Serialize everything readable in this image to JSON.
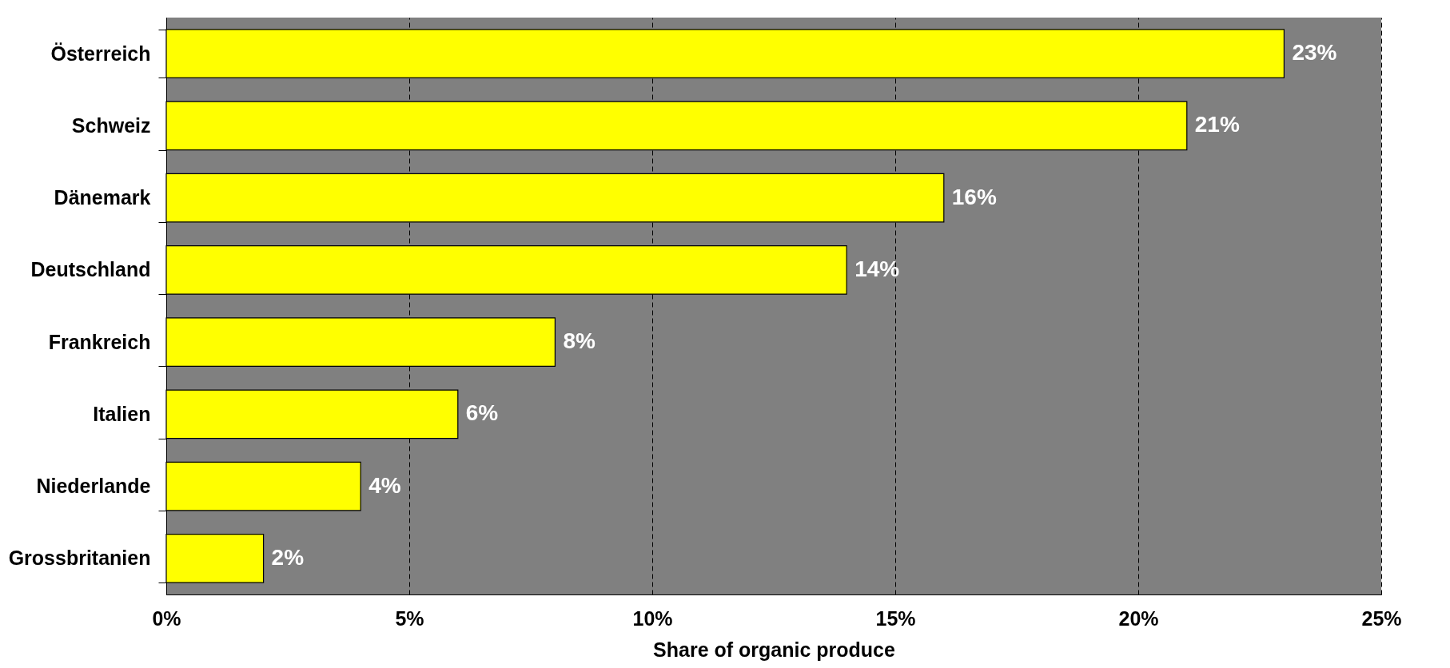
{
  "chart_data": {
    "type": "bar",
    "orientation": "horizontal",
    "xlabel": "Share of organic produce",
    "categories": [
      "Österreich",
      "Schweiz",
      "Dänemark",
      "Deutschland",
      "Frankreich",
      "Italien",
      "Niederlande",
      "Grossbritanien"
    ],
    "values": [
      23,
      21,
      16,
      14,
      8,
      6,
      4,
      2
    ],
    "value_labels": [
      "23%",
      "21%",
      "16%",
      "14%",
      "8%",
      "6%",
      "4%",
      "2%"
    ],
    "color": "#ffff00",
    "xlim": [
      0,
      25
    ],
    "xticks": [
      {
        "value": 0,
        "label": "0%"
      },
      {
        "value": 5,
        "label": "5%"
      },
      {
        "value": 10,
        "label": "10%"
      },
      {
        "value": 15,
        "label": "15%"
      },
      {
        "value": 20,
        "label": "20%"
      },
      {
        "value": 25,
        "label": "25%"
      }
    ],
    "grid": "x"
  }
}
